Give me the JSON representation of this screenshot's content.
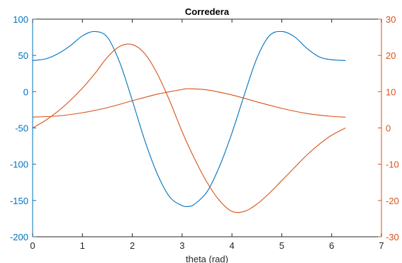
{
  "chart_data": {
    "type": "line",
    "title": "Corredera",
    "xlabel": "theta (rad)",
    "ylabel_left": "",
    "ylabel_right": "",
    "xlim": [
      0,
      7
    ],
    "ylim_left": [
      -200,
      100
    ],
    "ylim_right": [
      -30,
      30
    ],
    "x_ticks": [
      "0",
      "1",
      "2",
      "3",
      "4",
      "5",
      "6",
      "7"
    ],
    "y_left_ticks": [
      "-200",
      "-150",
      "-100",
      "-50",
      "0",
      "50",
      "100"
    ],
    "y_right_ticks": [
      "-30",
      "-20",
      "-10",
      "0",
      "10",
      "20",
      "30"
    ],
    "grid": false,
    "legend": "none",
    "colors": {
      "left": "#0072BD",
      "right": "#D95319",
      "axes": "#262626"
    },
    "series": [
      {
        "axis": "left",
        "x": [
          0,
          0.25,
          0.5,
          0.75,
          1.0,
          1.25,
          1.5,
          1.75,
          2.0,
          2.25,
          2.5,
          2.75,
          3.0,
          3.14,
          3.25,
          3.5,
          3.75,
          4.0,
          4.25,
          4.5,
          4.75,
          5.0,
          5.25,
          5.5,
          5.75,
          6.0,
          6.28
        ],
        "values": [
          43,
          45,
          52,
          63,
          77,
          83,
          75,
          40,
          -12,
          -67,
          -113,
          -145,
          -157,
          -158,
          -155,
          -138,
          -103,
          -57,
          -4,
          46,
          77,
          83,
          76,
          60,
          48,
          44,
          43
        ]
      },
      {
        "axis": "right",
        "x": [
          0,
          0.25,
          0.5,
          0.75,
          1.0,
          1.25,
          1.5,
          1.75,
          2.0,
          2.25,
          2.5,
          2.75,
          3.0,
          3.25,
          3.5,
          3.75,
          4.0,
          4.25,
          4.5,
          4.75,
          5.0,
          5.25,
          5.5,
          5.75,
          6.0,
          6.28
        ],
        "values": [
          0,
          2,
          4.5,
          7.5,
          11,
          15,
          19.5,
          22.5,
          23,
          20.5,
          15,
          7.5,
          -1,
          -8.5,
          -15,
          -20,
          -23,
          -23,
          -21,
          -18,
          -14.5,
          -11,
          -7.5,
          -4.5,
          -2,
          0
        ]
      },
      {
        "axis": "right",
        "x": [
          0,
          0.5,
          1.0,
          1.5,
          2.0,
          2.5,
          3.0,
          3.14,
          3.5,
          4.0,
          4.5,
          5.0,
          5.5,
          6.0,
          6.28
        ],
        "values": [
          3,
          3.3,
          4.2,
          5.6,
          7.5,
          9.3,
          10.6,
          10.8,
          10.5,
          9.1,
          7.2,
          5.4,
          4.0,
          3.2,
          3
        ]
      }
    ]
  }
}
